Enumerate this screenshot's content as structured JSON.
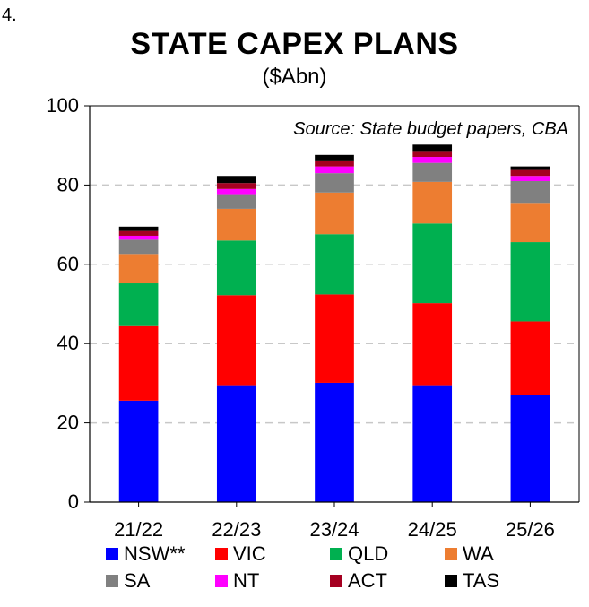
{
  "figure_number": "4.",
  "chart_data": {
    "type": "bar",
    "stacked": true,
    "title": "STATE CAPEX PLANS",
    "subtitle": "($Abn)",
    "annotation": "Source: State budget papers, CBA",
    "categories": [
      "21/22",
      "22/23",
      "23/24",
      "24/25",
      "25/26"
    ],
    "ylim": [
      0,
      100
    ],
    "yticks": [
      0,
      20,
      40,
      60,
      80,
      100
    ],
    "grid": true,
    "legend_position": "bottom",
    "series": [
      {
        "name": "NSW**",
        "color": "#0000ff",
        "values": [
          25.6,
          29.5,
          30.1,
          29.5,
          27.0
        ]
      },
      {
        "name": "VIC",
        "color": "#ff0000",
        "values": [
          18.8,
          22.7,
          22.3,
          20.7,
          18.6
        ]
      },
      {
        "name": "QLD",
        "color": "#00b050",
        "values": [
          10.8,
          13.8,
          15.2,
          20.1,
          20.0
        ]
      },
      {
        "name": "WA",
        "color": "#ed7d31",
        "values": [
          7.4,
          8.0,
          10.5,
          10.5,
          9.9
        ]
      },
      {
        "name": "SA",
        "color": "#808080",
        "values": [
          3.6,
          3.7,
          4.9,
          4.8,
          5.5
        ]
      },
      {
        "name": "NT",
        "color": "#ff00ff",
        "values": [
          1.0,
          1.3,
          1.7,
          1.5,
          1.3
        ]
      },
      {
        "name": "ACT",
        "color": "#a50021",
        "values": [
          1.2,
          1.5,
          1.3,
          1.5,
          1.5
        ]
      },
      {
        "name": "TAS",
        "color": "#000000",
        "values": [
          1.1,
          1.8,
          1.6,
          1.6,
          0.9
        ]
      }
    ]
  }
}
